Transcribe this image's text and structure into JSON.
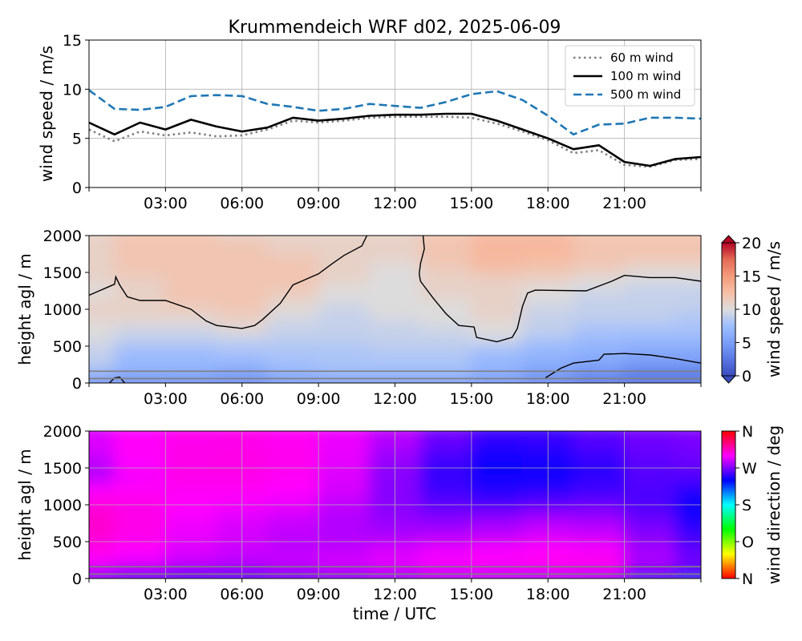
{
  "figure": {
    "title": "Krummendeich WRF d02, 2025-06-09"
  },
  "chart_data": [
    {
      "type": "line",
      "ylabel": "wind speed / m/s",
      "xlim": [
        0,
        24
      ],
      "ylim": [
        0,
        15
      ],
      "yticks": [
        0,
        5,
        10,
        15
      ],
      "xticks": [
        3,
        6,
        9,
        12,
        15,
        18,
        21
      ],
      "xticklabels": [
        "03:00",
        "06:00",
        "09:00",
        "12:00",
        "15:00",
        "18:00",
        "21:00"
      ],
      "grid": true,
      "legend_position": "top-right",
      "x": [
        0,
        1,
        2,
        3,
        4,
        5,
        6,
        7,
        8,
        9,
        10,
        11,
        12,
        13,
        14,
        15,
        16,
        17,
        18,
        19,
        20,
        21,
        22,
        23,
        24
      ],
      "series": [
        {
          "name": "60 m wind",
          "color": "#7f7f7f",
          "style": "dotted",
          "values": [
            5.9,
            4.7,
            5.7,
            5.3,
            5.6,
            5.2,
            5.3,
            5.9,
            6.8,
            6.6,
            6.8,
            7.1,
            7.2,
            7.2,
            7.2,
            7.1,
            6.5,
            5.7,
            4.8,
            3.5,
            3.8,
            2.3,
            2.1,
            2.8,
            2.9
          ]
        },
        {
          "name": "100 m wind",
          "color": "#000000",
          "style": "solid",
          "values": [
            6.6,
            5.4,
            6.6,
            5.9,
            6.9,
            6.2,
            5.7,
            6.1,
            7.1,
            6.8,
            7.0,
            7.3,
            7.4,
            7.4,
            7.5,
            7.5,
            6.8,
            5.9,
            5.0,
            3.9,
            4.3,
            2.6,
            2.2,
            2.9,
            3.1
          ]
        },
        {
          "name": "500 m wind",
          "color": "#1f77b4",
          "style": "dashed",
          "values": [
            9.9,
            8.0,
            7.9,
            8.2,
            9.3,
            9.4,
            9.3,
            8.5,
            8.2,
            7.8,
            8.0,
            8.5,
            8.3,
            8.1,
            8.7,
            9.5,
            9.8,
            8.9,
            7.3,
            5.4,
            6.4,
            6.5,
            7.1,
            7.1,
            7.0
          ]
        }
      ]
    },
    {
      "type": "heatmap",
      "ylabel": "height agl / m",
      "colorbar_label": "wind speed / m/s",
      "colorbar_ticks": [
        0,
        5,
        10,
        15,
        20
      ],
      "colormap": "coolwarm",
      "vlim": [
        0,
        20
      ],
      "xlim": [
        0,
        24
      ],
      "ylim": [
        0,
        2000
      ],
      "yticks": [
        0,
        500,
        1000,
        1500,
        2000
      ],
      "xticks": [
        3,
        6,
        9,
        12,
        15,
        18,
        21
      ],
      "xticklabels": [
        "03:00",
        "06:00",
        "09:00",
        "12:00",
        "15:00",
        "18:00",
        "21:00"
      ],
      "reference_heights": [
        60,
        160
      ],
      "heights": [
        0,
        50,
        100,
        200,
        300,
        400,
        500,
        600,
        700,
        800,
        900,
        1000,
        1100,
        1200,
        1300,
        1400,
        1500,
        1600,
        1700,
        1800,
        1900,
        2000
      ],
      "times": [
        0,
        2,
        4,
        6,
        8,
        10,
        12,
        14,
        16,
        18,
        20,
        22,
        24
      ],
      "values": [
        [
          3,
          3,
          3,
          3,
          4,
          4,
          4,
          4,
          4,
          3,
          2,
          2,
          2
        ],
        [
          5,
          5,
          5,
          4,
          5,
          6,
          6,
          6,
          5,
          4,
          3,
          2,
          2
        ],
        [
          7,
          6,
          6,
          6,
          7,
          7,
          7,
          7,
          6,
          5,
          4,
          3,
          3
        ],
        [
          8,
          7,
          7,
          6,
          7,
          8,
          8,
          8,
          7,
          6,
          5,
          4,
          4
        ],
        [
          9,
          7,
          7,
          7,
          8,
          8,
          8,
          8,
          7,
          6,
          6,
          5,
          5
        ],
        [
          9,
          7,
          7,
          8,
          8,
          8,
          8,
          8,
          7,
          7,
          6,
          6,
          6
        ],
        [
          9,
          8,
          8,
          8,
          8,
          8,
          9,
          9,
          8,
          7,
          7,
          6,
          6
        ],
        [
          10,
          9,
          9,
          9,
          9,
          9,
          9,
          9,
          10,
          8,
          7,
          7,
          7
        ],
        [
          10,
          9,
          9,
          10,
          9,
          9,
          9,
          9,
          10,
          9,
          8,
          8,
          8
        ],
        [
          10,
          10,
          10,
          11,
          9,
          9,
          9,
          10,
          10,
          9,
          8,
          8,
          8
        ],
        [
          11,
          11,
          11,
          11,
          10,
          9,
          10,
          10,
          11,
          9,
          9,
          9,
          8
        ],
        [
          11,
          11,
          11,
          12,
          10,
          9,
          10,
          10,
          11,
          9,
          9,
          9,
          9
        ],
        [
          11,
          11,
          12,
          12,
          11,
          10,
          10,
          10,
          11,
          10,
          9,
          9,
          9
        ],
        [
          10,
          11,
          12,
          12,
          11,
          10,
          10,
          11,
          11,
          10,
          9,
          9,
          9
        ],
        [
          10,
          11,
          12,
          12,
          12,
          10,
          10,
          11,
          11,
          10,
          10,
          9,
          9
        ],
        [
          11,
          11,
          12,
          12,
          12,
          11,
          10,
          11,
          11,
          11,
          10,
          10,
          10
        ],
        [
          11,
          12,
          12,
          12,
          12,
          11,
          10,
          11,
          12,
          12,
          11,
          10,
          10
        ],
        [
          11,
          12,
          12,
          12,
          12,
          11,
          10,
          12,
          13,
          12,
          12,
          11,
          11
        ],
        [
          11,
          12,
          12,
          12,
          12,
          11,
          11,
          12,
          13,
          13,
          12,
          12,
          12
        ],
        [
          11,
          12,
          12,
          12,
          11,
          11,
          11,
          12,
          13,
          13,
          12,
          12,
          12
        ],
        [
          11,
          12,
          12,
          12,
          11,
          11,
          11,
          12,
          13,
          13,
          12,
          12,
          12
        ],
        [
          11,
          12,
          12,
          11,
          11,
          11,
          11,
          12,
          13,
          13,
          12,
          12,
          12
        ]
      ],
      "contour_level": 10
    },
    {
      "type": "heatmap",
      "ylabel": "height agl / m",
      "xlabel": "time / UTC",
      "colorbar_label": "wind direction / deg",
      "colorbar_ticklabels": [
        "N",
        "O",
        "S",
        "W",
        "N"
      ],
      "colormap": "hsv",
      "vlim": [
        0,
        360
      ],
      "xlim": [
        0,
        24
      ],
      "ylim": [
        0,
        2000
      ],
      "yticks": [
        0,
        500,
        1000,
        1500,
        2000
      ],
      "xticks": [
        3,
        6,
        9,
        12,
        15,
        18,
        21
      ],
      "xticklabels": [
        "03:00",
        "06:00",
        "09:00",
        "12:00",
        "15:00",
        "18:00",
        "21:00"
      ],
      "grid": true,
      "reference_heights": [
        60,
        160
      ],
      "heights": [
        0,
        100,
        200,
        400,
        600,
        800,
        1000,
        1200,
        1400,
        1600,
        1800,
        2000
      ],
      "times": [
        0,
        2,
        4,
        6,
        8,
        10,
        12,
        14,
        16,
        18,
        20,
        22,
        24
      ],
      "values": [
        [
          265,
          255,
          250,
          252,
          258,
          262,
          265,
          272,
          272,
          268,
          262,
          235,
          230
        ],
        [
          280,
          275,
          270,
          272,
          278,
          285,
          290,
          295,
          298,
          300,
          300,
          270,
          262
        ],
        [
          300,
          295,
          288,
          285,
          288,
          292,
          295,
          300,
          302,
          305,
          305,
          282,
          268
        ],
        [
          305,
          300,
          292,
          288,
          285,
          285,
          290,
          295,
          298,
          300,
          298,
          278,
          262
        ],
        [
          310,
          305,
          295,
          290,
          285,
          282,
          280,
          282,
          285,
          290,
          288,
          272,
          255
        ],
        [
          312,
          305,
          298,
          292,
          288,
          282,
          275,
          272,
          275,
          280,
          278,
          265,
          245
        ],
        [
          308,
          305,
          300,
          298,
          295,
          285,
          272,
          262,
          258,
          262,
          265,
          258,
          242
        ],
        [
          300,
          302,
          302,
          302,
          300,
          290,
          272,
          255,
          248,
          250,
          255,
          258,
          248
        ],
        [
          282,
          298,
          305,
          305,
          302,
          292,
          272,
          252,
          244,
          242,
          250,
          260,
          260
        ],
        [
          285,
          300,
          305,
          306,
          304,
          294,
          275,
          255,
          244,
          245,
          252,
          262,
          265
        ],
        [
          292,
          302,
          305,
          305,
          303,
          295,
          280,
          262,
          248,
          250,
          258,
          265,
          268
        ],
        [
          292,
          300,
          303,
          304,
          302,
          296,
          285,
          268,
          255,
          255,
          262,
          268,
          270
        ]
      ]
    }
  ]
}
